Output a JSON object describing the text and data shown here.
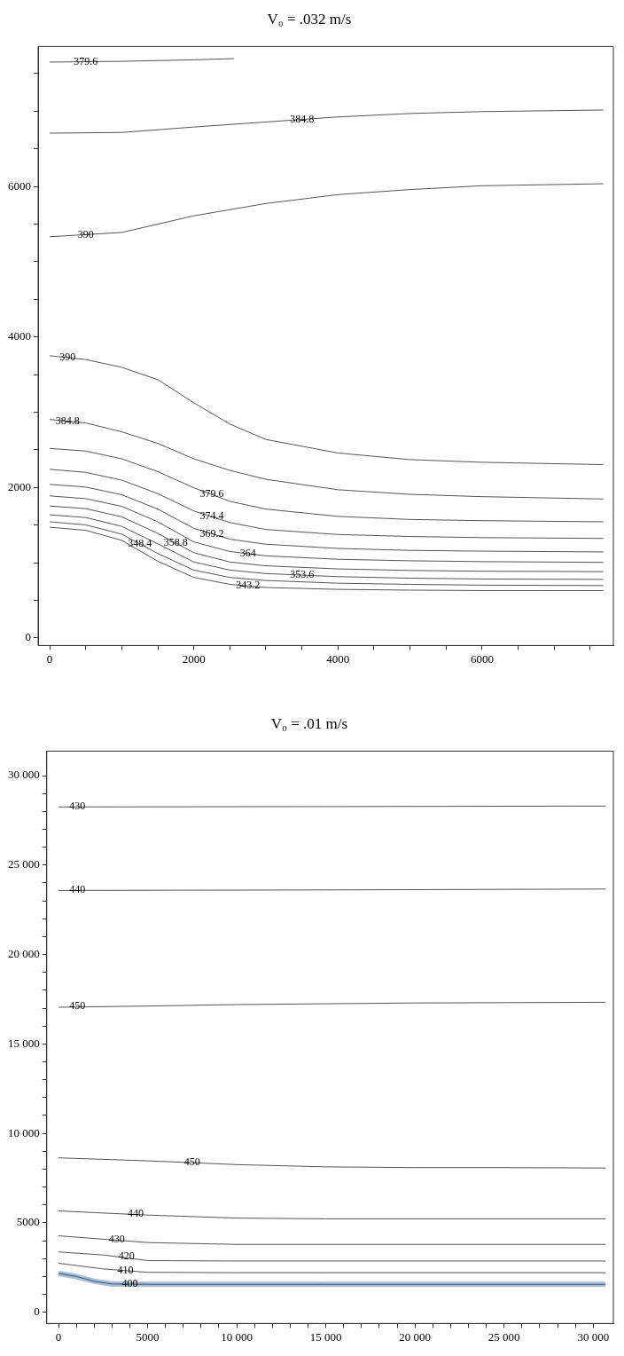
{
  "chart_data": [
    {
      "type": "line",
      "title": "V₀ = .032 m/s",
      "xlim": [
        -160,
        7820
      ],
      "ylim": [
        -100,
        7860
      ],
      "xticks": [
        0,
        {
          "value": 500,
          "label": null
        },
        {
          "value": 1000,
          "label": null
        },
        {
          "value": 1500,
          "label": null
        },
        2000,
        {
          "value": 2500,
          "label": null
        },
        {
          "value": 3000,
          "label": null
        },
        {
          "value": 3500,
          "label": null
        },
        4000,
        {
          "value": 4500,
          "label": null
        },
        {
          "value": 5000,
          "label": null
        },
        {
          "value": 5500,
          "label": null
        },
        6000,
        {
          "value": 6500,
          "label": null
        },
        {
          "value": 7000,
          "label": null
        },
        {
          "value": 7500,
          "label": null
        }
      ],
      "yticks": [
        0,
        {
          "value": 500,
          "label": null
        },
        {
          "value": 1000,
          "label": null
        },
        {
          "value": 1500,
          "label": null
        },
        2000,
        {
          "value": 2500,
          "label": null
        },
        {
          "value": 3000,
          "label": null
        },
        {
          "value": 3500,
          "label": null
        },
        4000,
        {
          "value": 4500,
          "label": null
        },
        {
          "value": 5000,
          "label": null
        },
        {
          "value": 5500,
          "label": null
        },
        6000,
        {
          "value": 6500,
          "label": null
        },
        {
          "value": 7000,
          "label": null
        },
        {
          "value": 7500,
          "label": null
        }
      ],
      "marker": "none",
      "series": [
        {
          "color": "#555555",
          "x": [
            0,
            1000,
            2000,
            2557
          ],
          "values": [
            7653,
            7663,
            7683,
            7699
          ]
        },
        {
          "color": "#555555",
          "x": [
            0,
            1000,
            2000,
            3000,
            4000,
            5000,
            6000,
            7680
          ],
          "values": [
            6708,
            6718,
            6790,
            6857,
            6924,
            6970,
            6995,
            7016
          ]
        },
        {
          "color": "#555555",
          "x": [
            0,
            1000,
            2000,
            3000,
            4000,
            5000,
            6000,
            7680
          ],
          "values": [
            5332,
            5389,
            5610,
            5774,
            5892,
            5959,
            6010,
            6036
          ]
        },
        {
          "color": "#555555",
          "x": [
            0,
            500,
            1000,
            1500,
            2000,
            2500,
            3000,
            4000,
            5000,
            6000,
            7680
          ],
          "values": [
            3751,
            3700,
            3597,
            3433,
            3125,
            2843,
            2638,
            2458,
            2370,
            2335,
            2304
          ]
        },
        {
          "color": "#555555",
          "x": [
            0,
            500,
            1000,
            1500,
            2000,
            2500,
            3000,
            4000,
            5000,
            6000,
            7680
          ],
          "values": [
            2904,
            2858,
            2740,
            2586,
            2381,
            2227,
            2109,
            1970,
            1909,
            1878,
            1847
          ]
        },
        {
          "color": "#555555",
          "x": [
            0,
            500,
            1000,
            1500,
            2000,
            2500,
            3000,
            4000,
            5000,
            6000,
            7680
          ],
          "values": [
            2519,
            2484,
            2381,
            2211,
            1996,
            1816,
            1713,
            1616,
            1575,
            1559,
            1544
          ]
        },
        {
          "color": "#555555",
          "x": [
            0,
            500,
            1000,
            1500,
            2000,
            2500,
            3000,
            4000,
            5000,
            6000,
            7680
          ],
          "values": [
            2242,
            2201,
            2098,
            1919,
            1688,
            1534,
            1442,
            1375,
            1349,
            1334,
            1323
          ]
        },
        {
          "color": "#555555",
          "x": [
            0,
            500,
            1000,
            1500,
            2000,
            2500,
            3000,
            4000,
            5000,
            6000,
            7680
          ],
          "values": [
            2042,
            2006,
            1904,
            1713,
            1457,
            1313,
            1246,
            1190,
            1164,
            1154,
            1144
          ]
        },
        {
          "color": "#555555",
          "x": [
            0,
            500,
            1000,
            1500,
            2000,
            2500,
            3000,
            4000,
            5000,
            6000,
            7680
          ],
          "values": [
            1888,
            1852,
            1749,
            1544,
            1277,
            1149,
            1092,
            1046,
            1026,
            1015,
            1005
          ]
        },
        {
          "color": "#555555",
          "x": [
            0,
            500,
            1000,
            1500,
            2000,
            2500,
            3000,
            4000,
            5000,
            6000,
            7680
          ],
          "values": [
            1754,
            1719,
            1611,
            1390,
            1133,
            1010,
            959,
            918,
            897,
            887,
            882
          ]
        },
        {
          "color": "#555555",
          "x": [
            0,
            500,
            1000,
            1500,
            2000,
            2500,
            3000,
            4000,
            5000,
            6000,
            7680
          ],
          "values": [
            1637,
            1601,
            1483,
            1251,
            1010,
            902,
            856,
            815,
            795,
            784,
            779
          ]
        },
        {
          "color": "#555555",
          "x": [
            0,
            500,
            1000,
            1500,
            2000,
            2500,
            3000,
            4000,
            5000,
            6000,
            7680
          ],
          "values": [
            1544,
            1503,
            1380,
            1123,
            902,
            805,
            764,
            728,
            713,
            702,
            697
          ]
        },
        {
          "color": "#555555",
          "x": [
            0,
            500,
            1000,
            1500,
            2000,
            2500,
            3000,
            4000,
            5000,
            6000,
            7680
          ],
          "values": [
            1472,
            1431,
            1298,
            1020,
            805,
            713,
            671,
            646,
            636,
            630,
            630
          ]
        }
      ],
      "annotations": [
        {
          "text": "379.6",
          "x": 500,
          "y": 7658
        },
        {
          "text": "384.8",
          "x": 3500,
          "y": 6890.5
        },
        {
          "text": "390",
          "x": 500,
          "y": 5360.5
        },
        {
          "text": "390",
          "x": 250,
          "y": 3725.5
        },
        {
          "text": "384.8",
          "x": 250,
          "y": 2881
        },
        {
          "text": "379.6",
          "x": 2250,
          "y": 1906
        },
        {
          "text": "374.4",
          "x": 2250,
          "y": 1611
        },
        {
          "text": "369.2",
          "x": 2250,
          "y": 1385
        },
        {
          "text": "364",
          "x": 2750,
          "y": 1120.5
        },
        {
          "text": "358.8",
          "x": 1750,
          "y": 1261.5
        },
        {
          "text": "353.6",
          "x": 3500,
          "y": 835.5
        },
        {
          "text": "348.4",
          "x": 1250,
          "y": 1251.5
        },
        {
          "text": "343.2",
          "x": 2750,
          "y": 692
        }
      ]
    },
    {
      "type": "line",
      "title": "V₀ = .01 m/s",
      "xlim": [
        -660,
        31130
      ],
      "ylim": [
        -630,
        31370
      ],
      "xticks": [
        0,
        {
          "value": 1000,
          "label": null
        },
        {
          "value": 2000,
          "label": null
        },
        {
          "value": 3000,
          "label": null
        },
        {
          "value": 4000,
          "label": null
        },
        5000,
        {
          "value": 6000,
          "label": null
        },
        {
          "value": 7000,
          "label": null
        },
        {
          "value": 8000,
          "label": null
        },
        {
          "value": 9000,
          "label": null
        },
        {
          "value": 10000,
          "label": "10 000"
        },
        {
          "value": 11000,
          "label": null
        },
        {
          "value": 12000,
          "label": null
        },
        {
          "value": 13000,
          "label": null
        },
        {
          "value": 14000,
          "label": null
        },
        {
          "value": 15000,
          "label": "15 000"
        },
        {
          "value": 16000,
          "label": null
        },
        {
          "value": 17000,
          "label": null
        },
        {
          "value": 18000,
          "label": null
        },
        {
          "value": 19000,
          "label": null
        },
        {
          "value": 20000,
          "label": "20 000"
        },
        {
          "value": 21000,
          "label": null
        },
        {
          "value": 22000,
          "label": null
        },
        {
          "value": 23000,
          "label": null
        },
        {
          "value": 24000,
          "label": null
        },
        {
          "value": 25000,
          "label": "25 000"
        },
        {
          "value": 26000,
          "label": null
        },
        {
          "value": 27000,
          "label": null
        },
        {
          "value": 28000,
          "label": null
        },
        {
          "value": 29000,
          "label": null
        },
        {
          "value": 30000,
          "label": "30 000"
        }
      ],
      "yticks": [
        0,
        {
          "value": 1000,
          "label": null
        },
        {
          "value": 2000,
          "label": null
        },
        {
          "value": 3000,
          "label": null
        },
        {
          "value": 4000,
          "label": null
        },
        5000,
        {
          "value": 6000,
          "label": null
        },
        {
          "value": 7000,
          "label": null
        },
        {
          "value": 8000,
          "label": null
        },
        {
          "value": 9000,
          "label": null
        },
        {
          "value": 10000,
          "label": "10 000"
        },
        {
          "value": 11000,
          "label": null
        },
        {
          "value": 12000,
          "label": null
        },
        {
          "value": 13000,
          "label": null
        },
        {
          "value": 14000,
          "label": null
        },
        {
          "value": 15000,
          "label": "15 000"
        },
        {
          "value": 16000,
          "label": null
        },
        {
          "value": 17000,
          "label": null
        },
        {
          "value": 18000,
          "label": null
        },
        {
          "value": 19000,
          "label": null
        },
        {
          "value": 20000,
          "label": "20 000"
        },
        {
          "value": 21000,
          "label": null
        },
        {
          "value": 22000,
          "label": null
        },
        {
          "value": 23000,
          "label": null
        },
        {
          "value": 24000,
          "label": null
        },
        {
          "value": 25000,
          "label": "25 000"
        },
        {
          "value": 26000,
          "label": null
        },
        {
          "value": 27000,
          "label": null
        },
        {
          "value": 28000,
          "label": null
        },
        {
          "value": 29000,
          "label": null
        },
        {
          "value": 30000,
          "label": "30 000"
        }
      ],
      "marker": "none",
      "series": [
        {
          "color": "#555555",
          "x": [
            0,
            15000,
            30700
          ],
          "values": [
            28250,
            28270,
            28300
          ]
        },
        {
          "color": "#555555",
          "x": [
            0,
            15000,
            30700
          ],
          "values": [
            23580,
            23610,
            23660
          ]
        },
        {
          "color": "#555555",
          "x": [
            0,
            5000,
            10000,
            20000,
            30700
          ],
          "values": [
            17050,
            17120,
            17200,
            17290,
            17330
          ]
        },
        {
          "color": "#555555",
          "x": [
            0,
            5000,
            10000,
            15000,
            20000,
            25000,
            30700
          ],
          "values": [
            8633,
            8465,
            8254,
            8128,
            8086,
            8086,
            8065
          ]
        },
        {
          "color": "#555555",
          "x": [
            0,
            5000,
            10000,
            15000,
            20000,
            30700
          ],
          "values": [
            5665,
            5433,
            5265,
            5223,
            5223,
            5223
          ]
        },
        {
          "color": "#555555",
          "x": [
            0,
            5000,
            10000,
            20000,
            30700
          ],
          "values": [
            4275,
            3897,
            3792,
            3792,
            3792
          ]
        },
        {
          "color": "#555555",
          "x": [
            0,
            2500,
            5000,
            10000,
            30700
          ],
          "values": [
            3371,
            3202,
            2887,
            2866,
            2866
          ]
        },
        {
          "color": "#555555",
          "x": [
            0,
            2500,
            5000,
            10000,
            30700
          ],
          "values": [
            2739,
            2423,
            2233,
            2212,
            2212
          ]
        },
        {
          "color": "#2b5a8f",
          "x": [
            0,
            1000,
            2000,
            3000,
            5000,
            15000,
            30700
          ],
          "values": [
            2170,
            2000,
            1730,
            1580,
            1560,
            1560,
            1560
          ],
          "lower": [
            2020,
            1850,
            1580,
            1430,
            1410,
            1410,
            1410
          ],
          "upper": [
            2320,
            2150,
            1880,
            1730,
            1710,
            1710,
            1710
          ]
        }
      ],
      "annotations": [
        {
          "text": "430",
          "x": 1060,
          "y": 28270
        },
        {
          "text": "440",
          "x": 1060,
          "y": 23620
        },
        {
          "text": "450",
          "x": 1060,
          "y": 17116
        },
        {
          "text": "450",
          "x": 7500,
          "y": 8359.5
        },
        {
          "text": "440",
          "x": 4329,
          "y": 5518
        },
        {
          "text": "430",
          "x": 3268,
          "y": 4044
        },
        {
          "text": "420",
          "x": 3820,
          "y": 3097
        },
        {
          "text": "410",
          "x": 3750,
          "y": 2328
        },
        {
          "text": "400",
          "x": 4000,
          "y": 1570
        }
      ]
    }
  ]
}
